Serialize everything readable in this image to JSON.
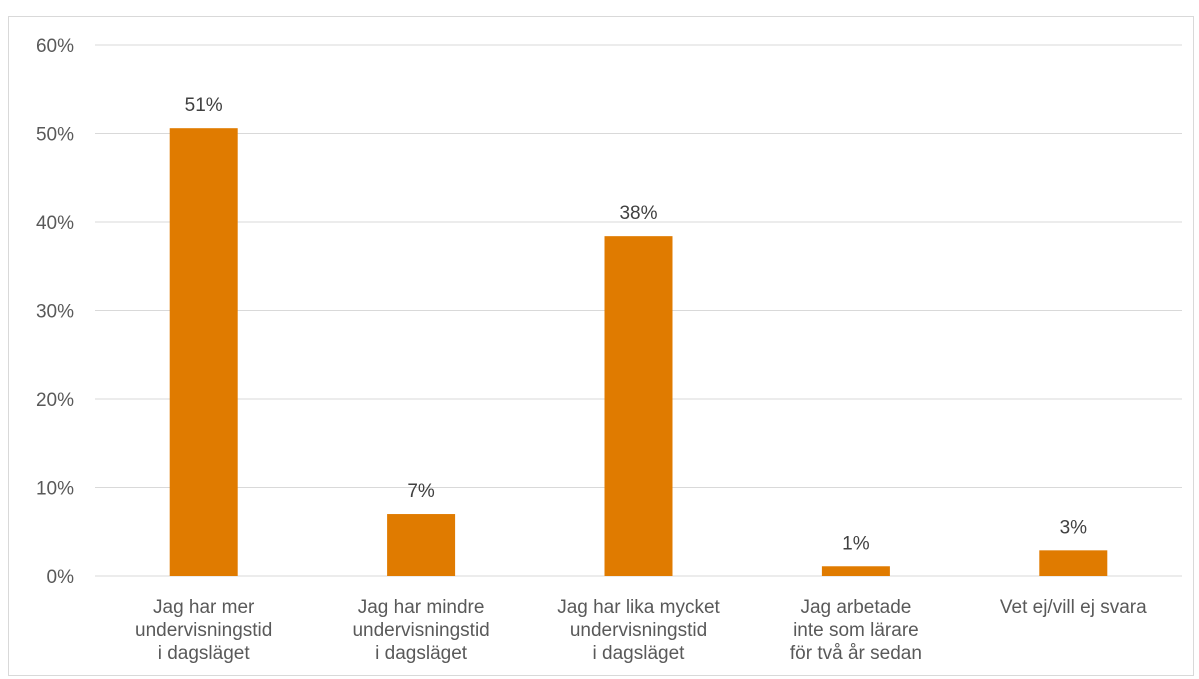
{
  "chart_data": {
    "type": "bar",
    "categories": [
      [
        "Jag har mer",
        "undervisningstid",
        "i dagsläget"
      ],
      [
        "Jag har mindre",
        "undervisningstid",
        "i dagsläget"
      ],
      [
        "Jag har lika mycket",
        "undervisningstid",
        "i dagsläget"
      ],
      [
        "Jag arbetade",
        "inte som lärare",
        "för två år sedan"
      ],
      [
        "Vet ej/vill ej svara"
      ]
    ],
    "values": [
      50.6,
      7.0,
      38.4,
      1.1,
      2.9
    ],
    "data_labels": [
      "51%",
      "7%",
      "38%",
      "1%",
      "3%"
    ],
    "y_ticks": [
      "0%",
      "10%",
      "20%",
      "30%",
      "40%",
      "50%",
      "60%"
    ],
    "ylim": [
      0,
      60
    ],
    "grid": true,
    "bar_color": "#e07b00",
    "grid_color": "#d9d9d9",
    "legend": false
  }
}
